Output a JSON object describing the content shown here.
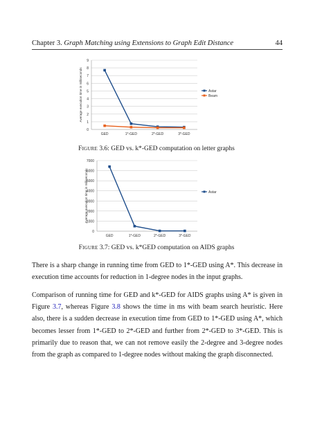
{
  "header": {
    "chapter_prefix": "Chapter 3.",
    "chapter_title": "Graph Matching using Extensions to Graph Edit Distance",
    "page_number": "44"
  },
  "figures": [
    {
      "label": "Figure",
      "number": "3.6",
      "caption": ": GED vs. k*-GED computation on letter graphs"
    },
    {
      "label": "Figure",
      "number": "3.7",
      "caption": ": GED vs. k*GED computation on AIDS graphs"
    }
  ],
  "paragraphs": [
    {
      "text": "There is a sharp change in running time from GED to 1*-GED using A*. This decrease in execution time accounts for reduction in 1-degree nodes in the input graphs."
    },
    {
      "part1": "Comparison of running time for GED and k*-GED for AIDS graphs using A* is given in Figure ",
      "ref1": "3.7",
      "part2": ", whereas Figure ",
      "ref2": "3.8",
      "part3": " shows the time in ms with beam search heuristic. Here also, there is a sudden decrease in execution time from GED to 1*-GED using A*, which becomes lesser from 1*-GED to 2*-GED and further from 2*-GED to 3*-GED. This is primarily due to reason that, we can not remove easily the 2-degree and 3-degree nodes from the graph as compared to 1-degree nodes without making the graph disconnected."
    }
  ],
  "chart_data": [
    {
      "type": "line",
      "categories": [
        "GED",
        "1*-GED",
        "2*-GED",
        "3*-GED"
      ],
      "series": [
        {
          "name": "Astar",
          "values": [
            7.7,
            0.75,
            0.35,
            0.3
          ],
          "color": "#1f4e8c"
        },
        {
          "name": "Beam",
          "values": [
            0.48,
            0.3,
            0.22,
            0.22
          ],
          "color": "#e8601c"
        }
      ],
      "ylabel": "Average execution time in milliseconds",
      "ylim": [
        0,
        9
      ],
      "yticks": [
        0,
        1,
        2,
        3,
        4,
        5,
        6,
        7,
        8,
        9
      ],
      "grid": true,
      "legend": "right"
    },
    {
      "type": "line",
      "categories": [
        "GED",
        "1*-GED",
        "2*-GED",
        "3*-GED"
      ],
      "series": [
        {
          "name": "Astar",
          "values": [
            6400,
            500,
            30,
            30
          ],
          "color": "#1f4e8c"
        }
      ],
      "ylabel": "Average execution time in milliseconds",
      "ylim": [
        0,
        7000
      ],
      "yticks": [
        0,
        1000,
        2000,
        3000,
        4000,
        5000,
        6000,
        7000
      ],
      "grid": true,
      "legend": "right"
    }
  ]
}
